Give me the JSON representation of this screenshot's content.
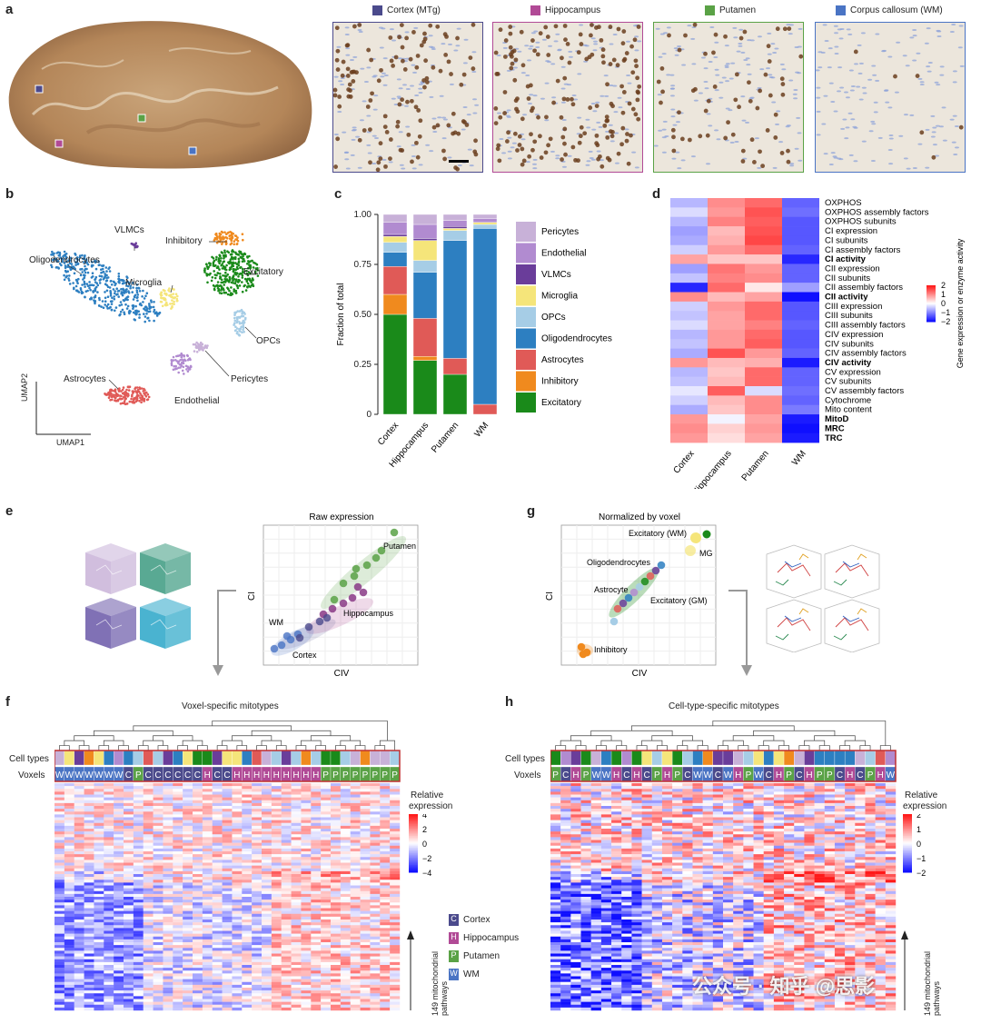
{
  "panels": {
    "a": "a",
    "b": "b",
    "c": "c",
    "d": "d",
    "e": "e",
    "f": "f",
    "g": "g",
    "h": "h"
  },
  "panel_a": {
    "regions": [
      {
        "label": "Cortex (MTg)",
        "color": "#4b4a8c"
      },
      {
        "label": "Hippocampus",
        "color": "#b14a96"
      },
      {
        "label": "Putamen",
        "color": "#5aa246"
      },
      {
        "label": "Corpus callosum (WM)",
        "color": "#4a74c4"
      }
    ]
  },
  "panel_b": {
    "clusters": [
      {
        "label": "Oligodendrocytes",
        "color": "#2d7fc1"
      },
      {
        "label": "VLMCs",
        "color": "#6a3d9a"
      },
      {
        "label": "Inhibitory",
        "color": "#f08a1e"
      },
      {
        "label": "Excitatory",
        "color": "#1a8a1a"
      },
      {
        "label": "Microglia",
        "color": "#f5e57a"
      },
      {
        "label": "OPCs",
        "color": "#a6cde6"
      },
      {
        "label": "Pericytes",
        "color": "#c8b1d8"
      },
      {
        "label": "Endothelial",
        "color": "#b18bd0"
      },
      {
        "label": "Astrocytes",
        "color": "#e05a57"
      }
    ],
    "axis_x": "UMAP1",
    "axis_y": "UMAP2"
  },
  "chart_data": [
    {
      "type": "bar",
      "stacked": true,
      "ylabel": "Fraction of total",
      "yticks": [
        "0",
        "0.25",
        "0.50",
        "0.75",
        "1.00"
      ],
      "ylim": [
        0,
        1
      ],
      "categories": [
        "Cortex",
        "Hippocampus",
        "Putamen",
        "WM"
      ],
      "series": [
        {
          "name": "Excitatory",
          "color": "#1a8a1a",
          "values": [
            0.5,
            0.27,
            0.2,
            0.0
          ]
        },
        {
          "name": "Inhibitory",
          "color": "#f08a1e",
          "values": [
            0.1,
            0.02,
            0.0,
            0.0
          ]
        },
        {
          "name": "Astrocytes",
          "color": "#e05a57",
          "values": [
            0.14,
            0.19,
            0.08,
            0.05
          ]
        },
        {
          "name": "Oligodendrocytes",
          "color": "#2d7fc1",
          "values": [
            0.07,
            0.23,
            0.59,
            0.88
          ]
        },
        {
          "name": "OPCs",
          "color": "#a6cde6",
          "values": [
            0.05,
            0.06,
            0.05,
            0.02
          ]
        },
        {
          "name": "Microglia",
          "color": "#f5e57a",
          "values": [
            0.03,
            0.1,
            0.01,
            0.01
          ]
        },
        {
          "name": "VLMCs",
          "color": "#6a3d9a",
          "values": [
            0.01,
            0.01,
            0.01,
            0.0
          ]
        },
        {
          "name": "Endothelial",
          "color": "#b18bd0",
          "values": [
            0.06,
            0.07,
            0.03,
            0.02
          ]
        },
        {
          "name": "Pericytes",
          "color": "#c8b1d8",
          "values": [
            0.04,
            0.05,
            0.03,
            0.02
          ]
        }
      ],
      "legend_order": [
        "Pericytes",
        "Endothelial",
        "VLMCs",
        "Microglia",
        "OPCs",
        "Oligodendrocytes",
        "Astrocytes",
        "Inhibitory",
        "Excitatory"
      ]
    },
    {
      "type": "heatmap",
      "columns": [
        "Cortex",
        "Hippocampus",
        "Putamen",
        "WM"
      ],
      "rows": [
        {
          "label": "OXPHOS",
          "bold": false,
          "values": [
            -0.6,
            1.0,
            1.3,
            -1.3
          ]
        },
        {
          "label": "OXPHOS assembly factors",
          "bold": false,
          "values": [
            -0.3,
            0.9,
            1.5,
            -1.2
          ]
        },
        {
          "label": "OXPHOS subunits",
          "bold": false,
          "values": [
            -0.6,
            1.1,
            1.4,
            -1.4
          ]
        },
        {
          "label": "CI expression",
          "bold": false,
          "values": [
            -0.8,
            0.6,
            1.5,
            -1.4
          ]
        },
        {
          "label": "CI subunits",
          "bold": false,
          "values": [
            -0.7,
            0.7,
            1.6,
            -1.4
          ]
        },
        {
          "label": "CI assembly factors",
          "bold": false,
          "values": [
            -0.4,
            0.9,
            1.3,
            -1.3
          ]
        },
        {
          "label": "CI activity",
          "bold": true,
          "values": [
            0.8,
            0.5,
            0.5,
            -1.8
          ]
        },
        {
          "label": "CII expression",
          "bold": false,
          "values": [
            -0.8,
            1.2,
            0.9,
            -1.3
          ]
        },
        {
          "label": "CII subunits",
          "bold": false,
          "values": [
            -0.5,
            1.1,
            1.0,
            -1.3
          ]
        },
        {
          "label": "CII assembly factors",
          "bold": false,
          "values": [
            -1.8,
            1.3,
            0.2,
            -0.8
          ]
        },
        {
          "label": "CII activity",
          "bold": true,
          "values": [
            1.0,
            0.6,
            0.8,
            -2.0
          ]
        },
        {
          "label": "CIII expression",
          "bold": false,
          "values": [
            -0.4,
            0.9,
            1.3,
            -1.4
          ]
        },
        {
          "label": "CIII subunits",
          "bold": false,
          "values": [
            -0.5,
            0.8,
            1.3,
            -1.4
          ]
        },
        {
          "label": "CIII assembly factors",
          "bold": false,
          "values": [
            -0.3,
            0.8,
            1.1,
            -1.3
          ]
        },
        {
          "label": "CIV expression",
          "bold": false,
          "values": [
            -0.6,
            0.9,
            1.3,
            -1.4
          ]
        },
        {
          "label": "CIV subunits",
          "bold": false,
          "values": [
            -0.5,
            0.9,
            1.4,
            -1.4
          ]
        },
        {
          "label": "CIV assembly factors",
          "bold": false,
          "values": [
            -0.7,
            1.5,
            0.9,
            -1.3
          ]
        },
        {
          "label": "CIV activity",
          "bold": true,
          "values": [
            0.9,
            0.6,
            0.7,
            -1.9
          ]
        },
        {
          "label": "CV expression",
          "bold": false,
          "values": [
            -0.6,
            0.5,
            1.3,
            -1.3
          ]
        },
        {
          "label": "CV subunits",
          "bold": false,
          "values": [
            -0.5,
            0.6,
            1.3,
            -1.3
          ]
        },
        {
          "label": "CV assembly factors",
          "bold": false,
          "values": [
            -0.2,
            1.4,
            -0.3,
            -1.2
          ]
        },
        {
          "label": "Cytochrome",
          "bold": false,
          "values": [
            -0.4,
            0.6,
            1.0,
            -1.3
          ]
        },
        {
          "label": "Mito content",
          "bold": false,
          "values": [
            -0.7,
            0.5,
            1.0,
            -1.1
          ]
        },
        {
          "label": "MitoD",
          "bold": true,
          "values": [
            0.9,
            -0.1,
            0.8,
            -1.9
          ]
        },
        {
          "label": "MRC",
          "bold": true,
          "values": [
            1.0,
            0.4,
            0.9,
            -2.0
          ]
        },
        {
          "label": "TRC",
          "bold": true,
          "values": [
            0.9,
            0.3,
            0.8,
            -1.9
          ]
        }
      ],
      "colorbar_ticks": [
        "2",
        "1",
        "0",
        "−1",
        "−2"
      ],
      "colorbar_label": "Gene expression or enzyme activity"
    },
    {
      "type": "scatter",
      "title": "Raw expression",
      "xlabel": "CIV",
      "ylabel": "CI",
      "groups": [
        "Putamen",
        "Hippocampus",
        "WM",
        "Cortex"
      ]
    },
    {
      "type": "scatter",
      "title": "Normalized by voxel",
      "xlabel": "CIV",
      "ylabel": "CI",
      "groups": [
        "Excitatory (WM)",
        "MG",
        "Oligodendrocytes",
        "Astrocyte",
        "Excitatory (GM)",
        "Inhibitory"
      ]
    }
  ],
  "panel_f": {
    "title": "Voxel-specific mitotypes",
    "row_label_cells": "Cell types",
    "row_label_voxels": "Voxels",
    "voxels": [
      "W",
      "W",
      "W",
      "W",
      "W",
      "W",
      "W",
      "C",
      "P",
      "C",
      "C",
      "C",
      "C",
      "C",
      "C",
      "H",
      "C",
      "C",
      "H",
      "H",
      "H",
      "H",
      "H",
      "H",
      "H",
      "H",
      "H",
      "P",
      "P",
      "P",
      "P",
      "P",
      "P",
      "P",
      "P"
    ],
    "legend_title": "Relative\nexpression",
    "legend_title_1": "Relative",
    "legend_title_2": "expression",
    "legend_ticks": [
      "4",
      "2",
      "0",
      "−2",
      "−4"
    ],
    "side_label": "149 mitochondrial pathways"
  },
  "panel_h": {
    "title": "Cell-type-specific mitotypes",
    "row_label_cells": "Cell types",
    "row_label_voxels": "Voxels",
    "voxels": [
      "P",
      "C",
      "H",
      "P",
      "W",
      "W",
      "H",
      "C",
      "H",
      "C",
      "P",
      "H",
      "P",
      "C",
      "W",
      "W",
      "C",
      "W",
      "H",
      "P",
      "W",
      "C",
      "H",
      "P",
      "C",
      "H",
      "P",
      "P",
      "C",
      "H",
      "C",
      "P",
      "H",
      "W"
    ],
    "legend_title_1": "Relative",
    "legend_title_2": "expression",
    "legend_ticks": [
      "2",
      "1",
      "0",
      "−1",
      "−2"
    ],
    "side_label": "149 mitochondrial pathways"
  },
  "voxel_legend": [
    {
      "letter": "C",
      "label": "Cortex",
      "color": "#4b4a8c"
    },
    {
      "letter": "H",
      "label": "Hippocampus",
      "color": "#b14a96"
    },
    {
      "letter": "P",
      "label": "Putamen",
      "color": "#5aa246"
    },
    {
      "letter": "W",
      "label": "WM",
      "color": "#4a74c4"
    }
  ],
  "panel_e_labels": {
    "putamen": "Putamen",
    "hippocampus": "Hippocampus",
    "wm": "WM",
    "cortex": "Cortex"
  },
  "panel_g_labels": {
    "exc_wm": "Excitatory (WM)",
    "mg": "MG",
    "oligo": "Oligodendrocytes",
    "astro": "Astrocyte",
    "exc_gm": "Excitatory (GM)",
    "inhib": "Inhibitory"
  },
  "watermark": "公众号 · 知乎 @思影"
}
